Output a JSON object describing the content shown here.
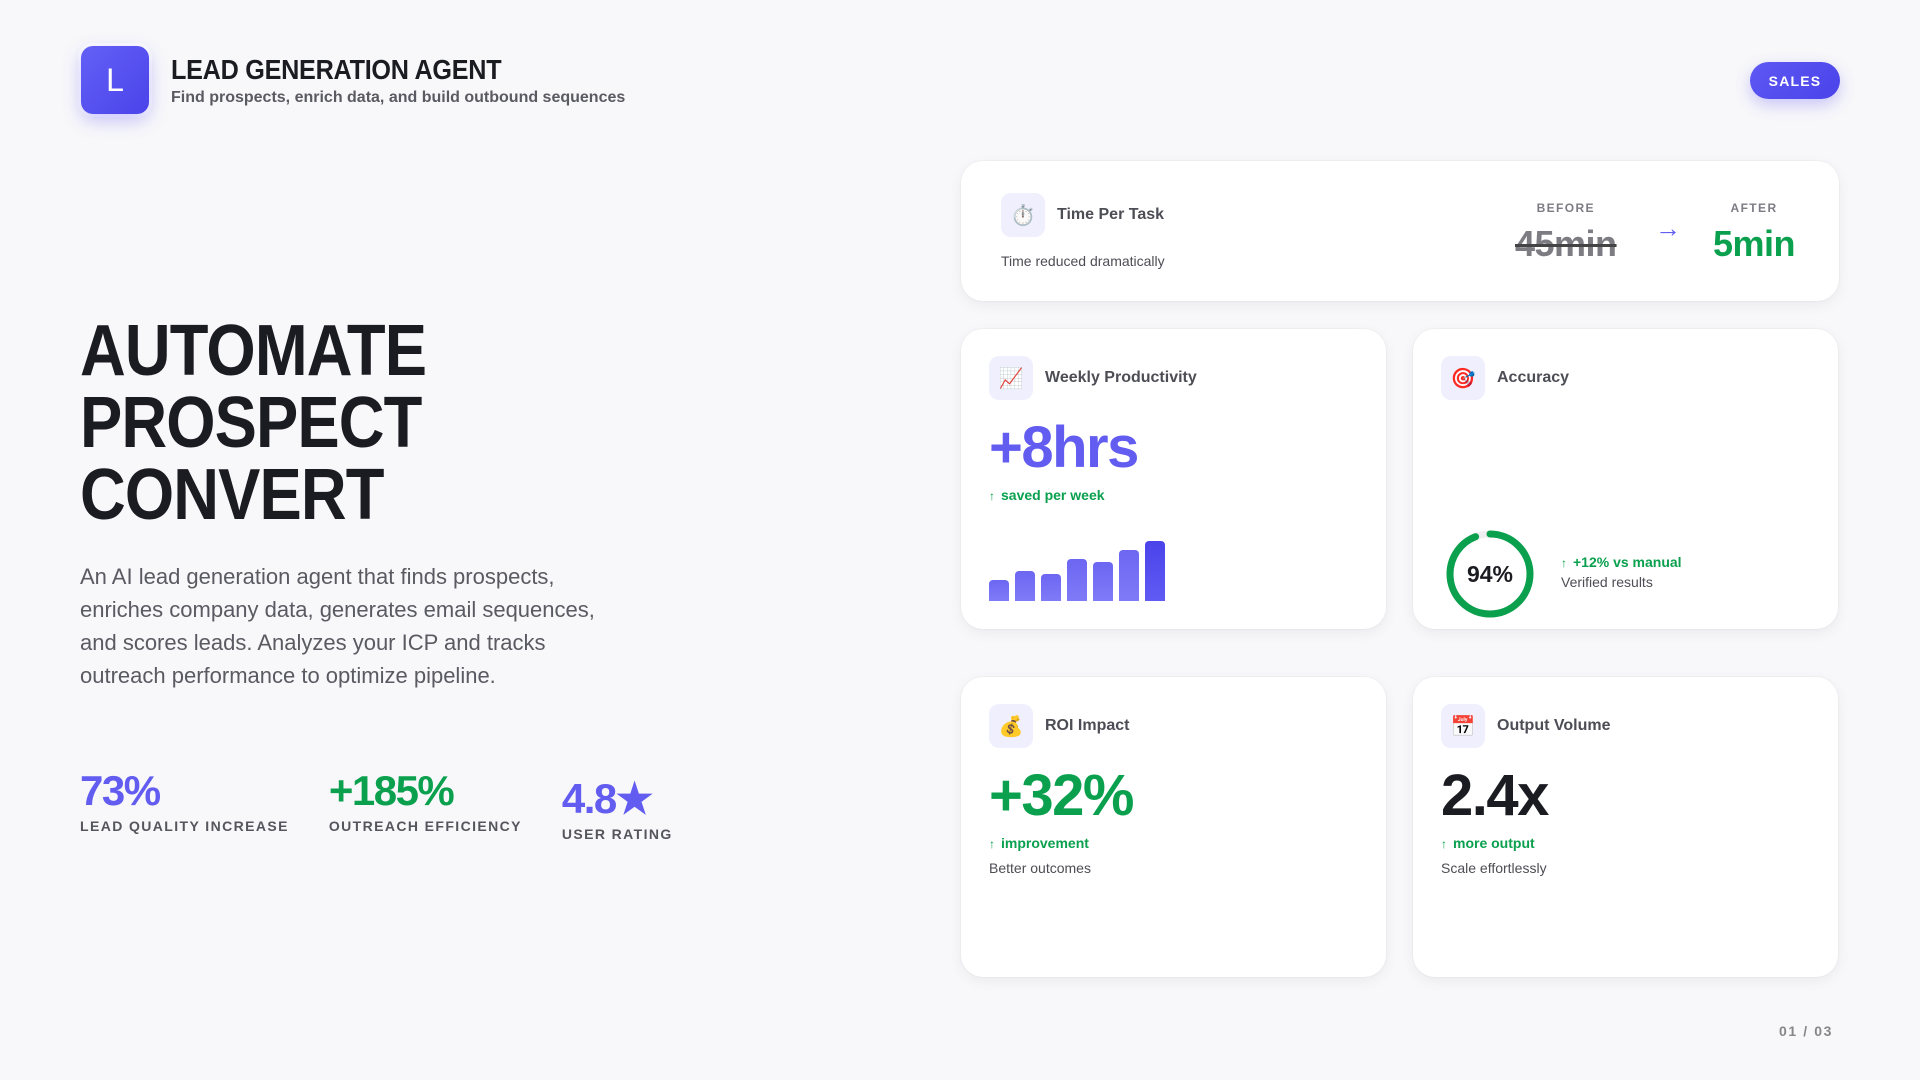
{
  "header": {
    "logo_letter": "L",
    "title": "LEAD GENERATION AGENT",
    "subtitle": "Find prospects, enrich data, and build outbound sequences",
    "badge": "SALES"
  },
  "hero": {
    "lines": [
      "AUTOMATE",
      "PROSPECT",
      "CONVERT"
    ],
    "description": "An AI lead generation agent that finds prospects, enriches company data, generates email sequences, and scores leads. Analyzes your ICP and tracks outreach performance to optimize pipeline."
  },
  "stats": [
    {
      "value": "73%",
      "label": "LEAD QUALITY INCREASE",
      "color": "#625cf0"
    },
    {
      "value": "+185%",
      "label": "OUTREACH EFFICIENCY",
      "color": "#0aa04e"
    },
    {
      "value": "4.8★",
      "label": "USER RATING",
      "color": "#625cf0"
    }
  ],
  "cards": {
    "time_per_task": {
      "icon": "⏱️",
      "title": "Time Per Task",
      "subtitle": "Time reduced dramatically",
      "before_label": "BEFORE",
      "before_value": "45min",
      "arrow": "→",
      "after_label": "AFTER",
      "after_value": "5min"
    },
    "weekly_productivity": {
      "icon": "📈",
      "title": "Weekly Productivity",
      "value": "+8hrs",
      "trend_arrow": "↑",
      "trend": "saved per week",
      "bars": [
        21,
        30,
        27,
        42,
        39,
        51,
        60
      ]
    },
    "accuracy": {
      "icon": "🎯",
      "title": "Accuracy",
      "value": "94%",
      "percent": 94,
      "trend_arrow": "↑",
      "trend": "+12% vs manual",
      "note": "Verified results"
    },
    "roi_impact": {
      "icon": "💰",
      "title": "ROI Impact",
      "value": "+32%",
      "trend_arrow": "↑",
      "trend": "improvement",
      "note": "Better outcomes"
    },
    "output_volume": {
      "icon": "📅",
      "title": "Output Volume",
      "value": "2.4x",
      "trend_arrow": "↑",
      "trend": "more output",
      "note": "Scale effortlessly"
    }
  },
  "colors": {
    "accent": "#625cf0",
    "positive": "#0aa04e",
    "text": "#1b1b22",
    "muted": "#5a5a62"
  },
  "pager": "01 / 03"
}
